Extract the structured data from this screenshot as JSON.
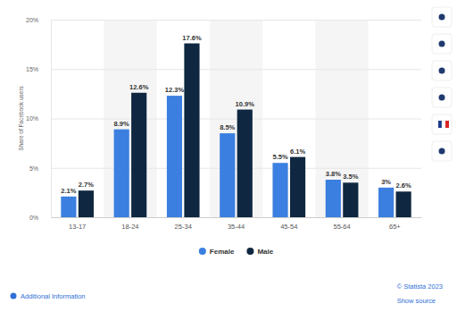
{
  "chart_data": {
    "type": "bar",
    "y_label": "Share of Facebook users",
    "categories": [
      "13-17",
      "18-24",
      "25-34",
      "35-44",
      "45-54",
      "55-64",
      "65+"
    ],
    "series": [
      {
        "name": "Female",
        "color": "#3b7fe0",
        "values": [
          2.1,
          8.9,
          12.3,
          8.5,
          5.5,
          3.8,
          3
        ],
        "value_labels": [
          "2.1%",
          "8.9%",
          "12.3%",
          "8.5%",
          "5.5%",
          "3.8%",
          "3%"
        ]
      },
      {
        "name": "Male",
        "color": "#0f2740",
        "values": [
          2.7,
          12.6,
          17.6,
          10.9,
          6.1,
          3.5,
          2.6
        ],
        "value_labels": [
          "2.7%",
          "12.6%",
          "17.6%",
          "10.9%",
          "6.1%",
          "3.5%",
          "2.6%"
        ]
      }
    ],
    "ylim": [
      0,
      20
    ],
    "yticks": [
      {
        "value": 0,
        "label": "0%"
      },
      {
        "value": 5,
        "label": "5%"
      },
      {
        "value": 10,
        "label": "10%"
      },
      {
        "value": 15,
        "label": "15%"
      },
      {
        "value": 20,
        "label": "20%"
      }
    ],
    "grid": true,
    "legend": "bottom",
    "data_labels": true,
    "annotations": [
      "Additional Information",
      "© Statista 2023",
      "Show source"
    ]
  }
}
